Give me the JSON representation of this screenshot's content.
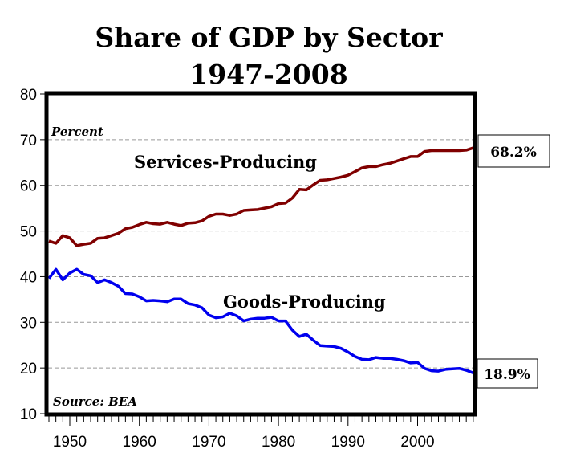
{
  "chart_data": {
    "type": "line",
    "title": [
      "Share of GDP by Sector",
      "1947-2008"
    ],
    "unit_note": "Percent",
    "source": "Source: BEA",
    "xlim": [
      1947,
      2008
    ],
    "ylim": [
      10,
      80
    ],
    "x_ticks": [
      "1950",
      "1960",
      "1970",
      "1980",
      "1990",
      "2000"
    ],
    "y_ticks": [
      "10",
      "20",
      "30",
      "40",
      "50",
      "60",
      "70",
      "80"
    ],
    "grid": "horizontal dashed",
    "x": [
      1947,
      1948,
      1949,
      1950,
      1951,
      1952,
      1953,
      1954,
      1955,
      1956,
      1957,
      1958,
      1959,
      1960,
      1961,
      1962,
      1963,
      1964,
      1965,
      1966,
      1967,
      1968,
      1969,
      1970,
      1971,
      1972,
      1973,
      1974,
      1975,
      1976,
      1977,
      1978,
      1979,
      1980,
      1981,
      1982,
      1983,
      1984,
      1985,
      1986,
      1987,
      1988,
      1989,
      1990,
      1991,
      1992,
      1993,
      1994,
      1995,
      1996,
      1997,
      1998,
      1999,
      2000,
      2001,
      2002,
      2003,
      2004,
      2005,
      2006,
      2007,
      2008
    ],
    "series": [
      {
        "name": "Services-Producing",
        "color": "#800000",
        "end_label": "68.2%",
        "values": [
          47.8,
          47.3,
          49.0,
          48.5,
          46.8,
          47.1,
          47.3,
          48.4,
          48.5,
          49.0,
          49.5,
          50.5,
          50.8,
          51.4,
          51.9,
          51.6,
          51.5,
          51.9,
          51.5,
          51.2,
          51.7,
          51.8,
          52.2,
          53.2,
          53.7,
          53.7,
          53.4,
          53.7,
          54.5,
          54.6,
          54.7,
          55.0,
          55.3,
          56.0,
          56.1,
          57.2,
          59.1,
          59.0,
          60.1,
          61.1,
          61.2,
          61.5,
          61.8,
          62.2,
          63.0,
          63.8,
          64.1,
          64.1,
          64.5,
          64.8,
          65.3,
          65.8,
          66.3,
          66.3,
          67.4,
          67.6,
          67.6,
          67.6,
          67.6,
          67.6,
          67.7,
          68.2
        ]
      },
      {
        "name": "Goods-Producing",
        "color": "#0000ee",
        "end_label": "18.9%",
        "values": [
          39.6,
          41.6,
          39.3,
          40.8,
          41.6,
          40.5,
          40.2,
          38.7,
          39.3,
          38.7,
          37.9,
          36.3,
          36.2,
          35.6,
          34.7,
          34.8,
          34.7,
          34.5,
          35.1,
          35.1,
          34.1,
          33.8,
          33.2,
          31.6,
          31.0,
          31.2,
          32.0,
          31.4,
          30.3,
          30.7,
          30.9,
          30.9,
          31.1,
          30.3,
          30.3,
          28.3,
          26.9,
          27.4,
          26.1,
          24.9,
          24.8,
          24.7,
          24.3,
          23.5,
          22.5,
          21.9,
          21.8,
          22.3,
          22.1,
          22.1,
          21.9,
          21.6,
          21.1,
          21.2,
          19.9,
          19.4,
          19.3,
          19.7,
          19.8,
          19.9,
          19.5,
          18.9
        ]
      }
    ]
  }
}
